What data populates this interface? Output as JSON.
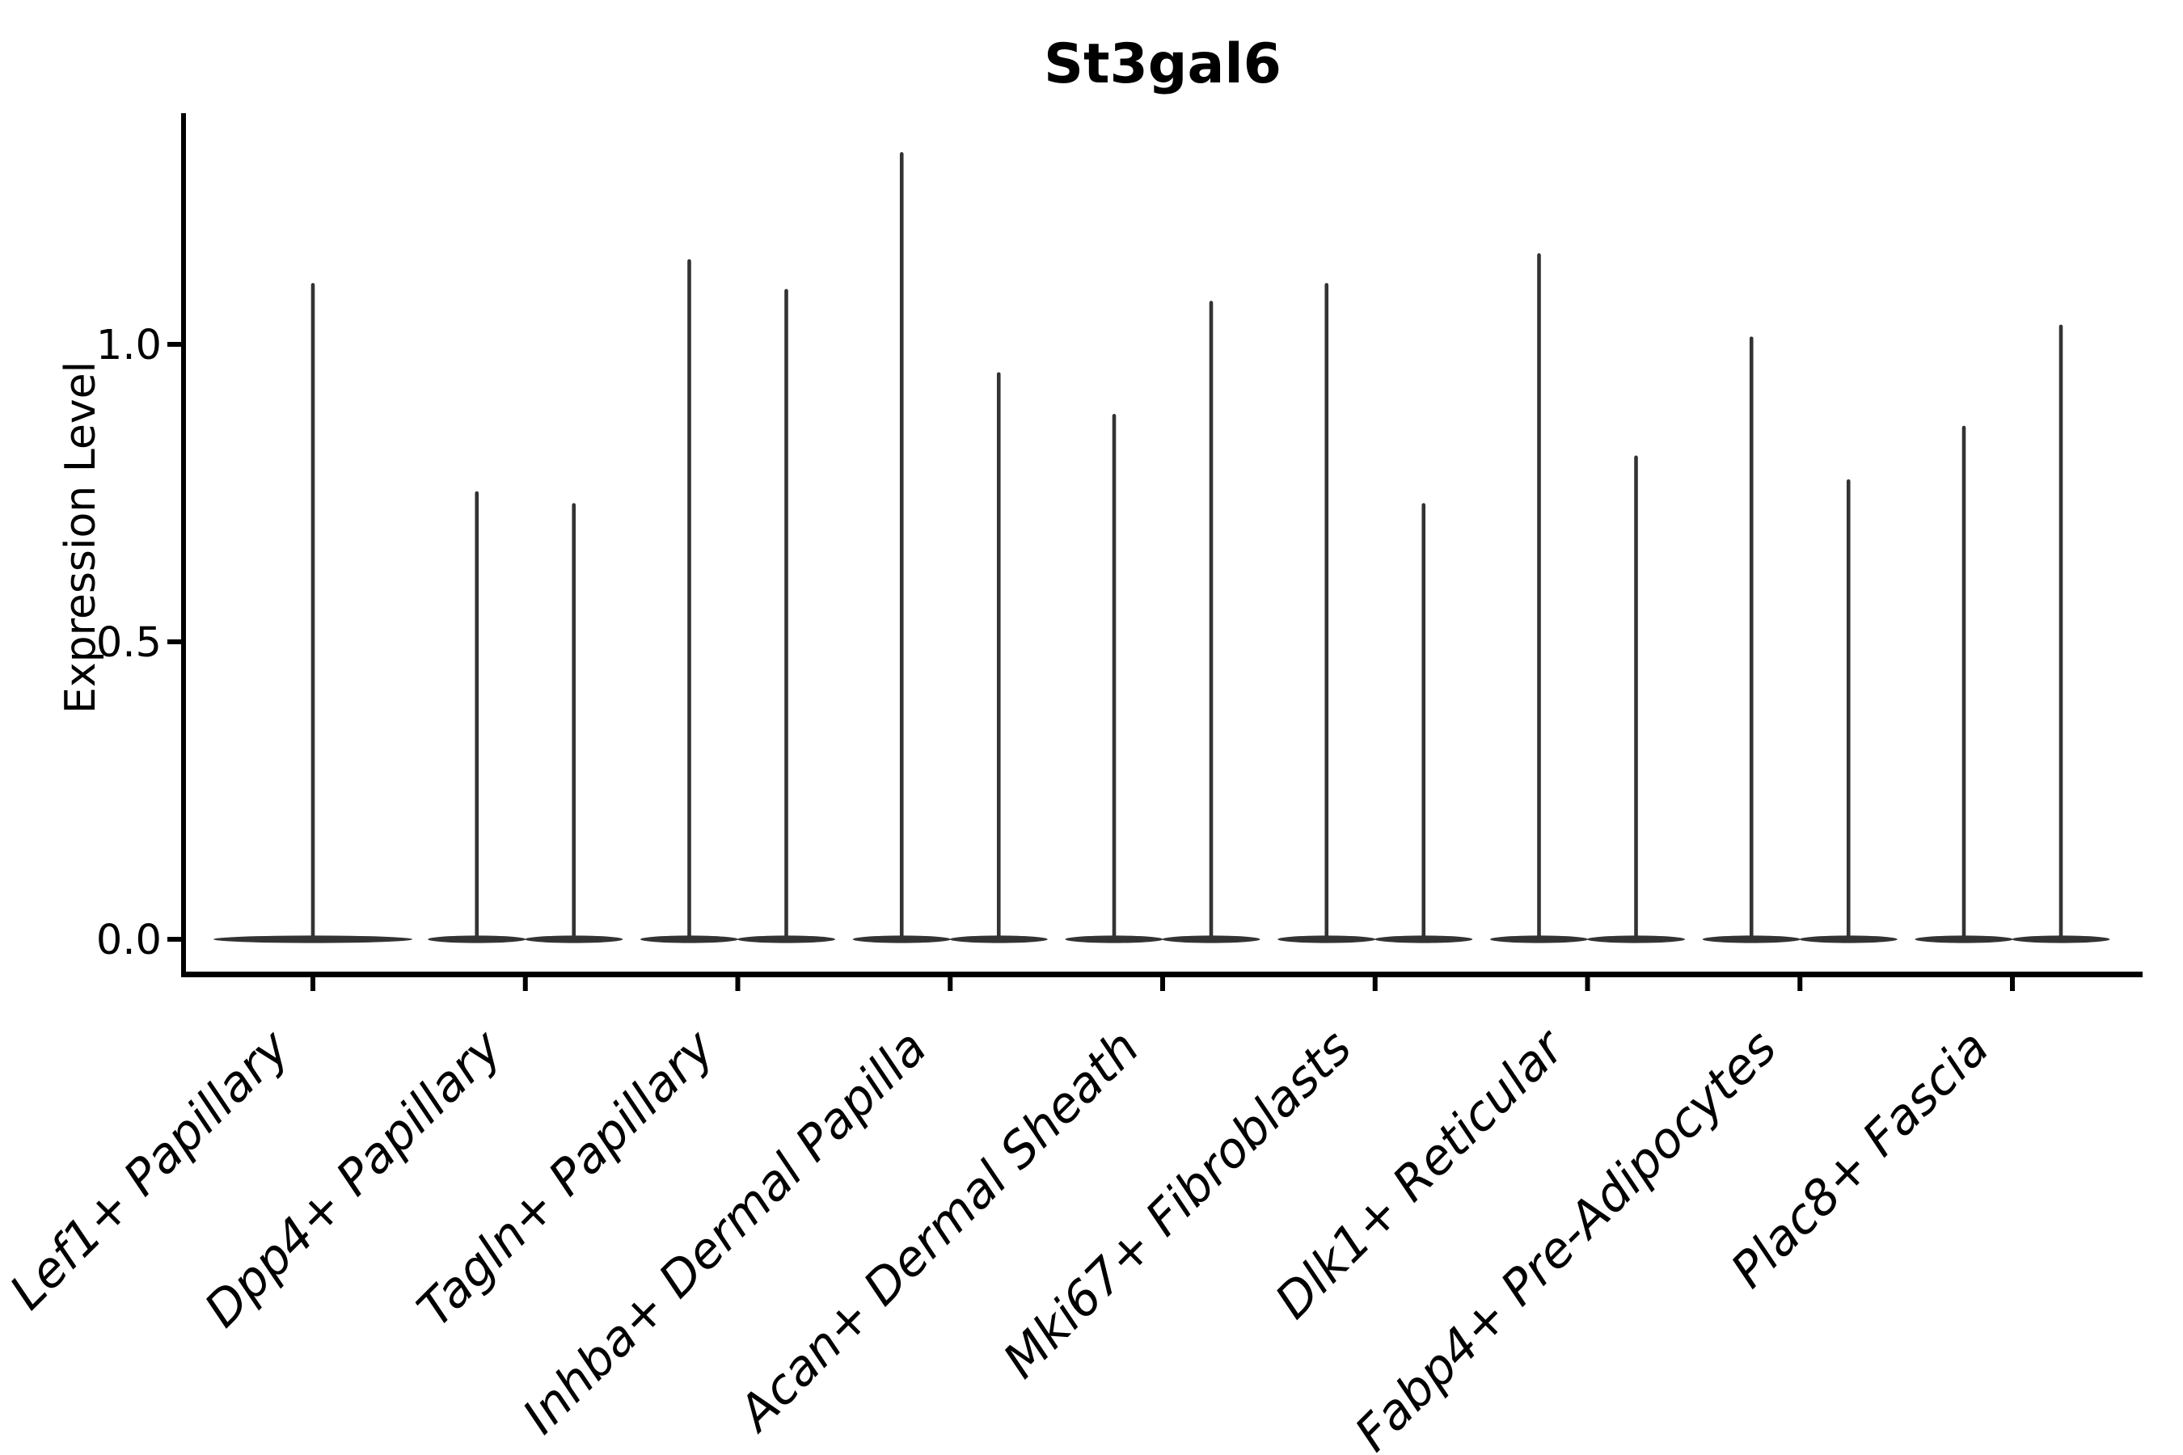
{
  "title": "St3gal6",
  "y_axis": {
    "label": "Expression Level",
    "tick_labels": [
      "0.0",
      "0.5",
      "1.0"
    ]
  },
  "chart_data": {
    "type": "violin",
    "title": "St3gal6",
    "xlabel": "",
    "ylabel": "Expression Level",
    "ylim": [
      -0.07,
      1.39
    ],
    "yticks": [
      0.0,
      0.5,
      1.0
    ],
    "grid": false,
    "legend_position": "none",
    "x_tick_rotation": 45,
    "categories": [
      "Lef1+ Papillary",
      "Dpp4+ Papillary",
      "Tagln+ Papillary",
      "Inhba+ Dermal Papilla",
      "Acan+ Dermal Sheath",
      "Mki67+ Fibroblasts",
      "Dlk1+ Reticular",
      "Fabp4+ Pre-Adipocytes",
      "Plac8+ Fascia"
    ],
    "violins": [
      {
        "category": "Lef1+ Papillary",
        "spikes": [
          {
            "align": "center",
            "max": 1.1
          }
        ]
      },
      {
        "category": "Dpp4+ Papillary",
        "spikes": [
          {
            "align": "left",
            "max": 0.75
          },
          {
            "align": "right",
            "max": 0.73
          }
        ]
      },
      {
        "category": "Tagln+ Papillary",
        "spikes": [
          {
            "align": "left",
            "max": 1.14
          },
          {
            "align": "right",
            "max": 1.09
          }
        ]
      },
      {
        "category": "Inhba+ Dermal Papilla",
        "spikes": [
          {
            "align": "left",
            "max": 1.32
          },
          {
            "align": "right",
            "max": 0.95
          }
        ]
      },
      {
        "category": "Acan+ Dermal Sheath",
        "spikes": [
          {
            "align": "left",
            "max": 0.88
          },
          {
            "align": "right",
            "max": 1.07
          }
        ]
      },
      {
        "category": "Mki67+ Fibroblasts",
        "spikes": [
          {
            "align": "left",
            "max": 1.1
          },
          {
            "align": "right",
            "max": 0.73
          }
        ]
      },
      {
        "category": "Dlk1+ Reticular",
        "spikes": [
          {
            "align": "left",
            "max": 1.15
          },
          {
            "align": "right",
            "max": 0.81
          }
        ]
      },
      {
        "category": "Fabp4+ Pre-Adipocytes",
        "spikes": [
          {
            "align": "left",
            "max": 1.01
          },
          {
            "align": "right",
            "max": 0.77
          }
        ]
      },
      {
        "category": "Plac8+ Fascia",
        "spikes": [
          {
            "align": "left",
            "max": 0.86
          },
          {
            "align": "right",
            "max": 1.03
          }
        ]
      }
    ]
  },
  "style": {
    "violin_color": "#333333",
    "axis_color": "#000000",
    "text_color": "#000000",
    "background": "#ffffff"
  }
}
